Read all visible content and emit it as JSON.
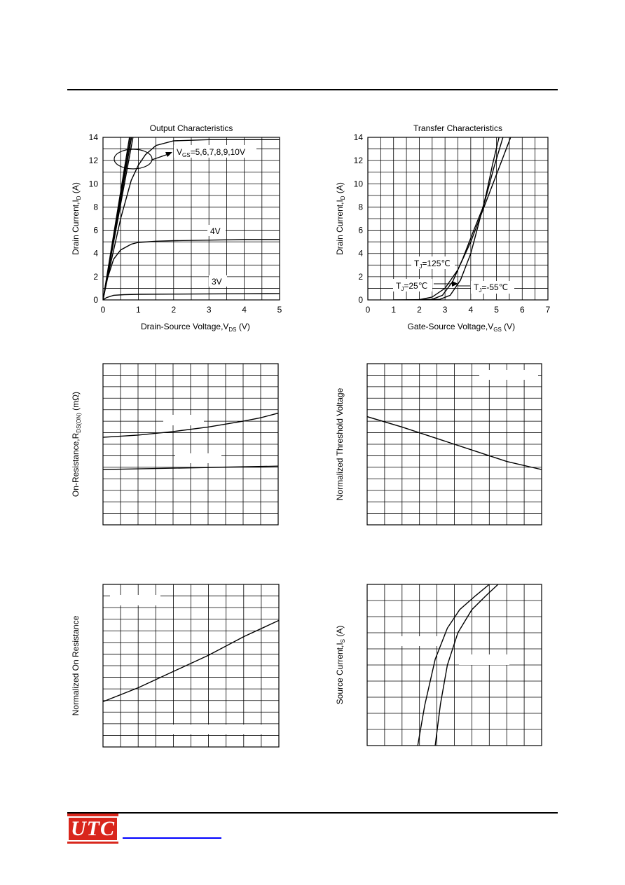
{
  "brand": {
    "logo_text": "UTC",
    "logo_color": "#d9261c",
    "link_color": "#0000ff"
  },
  "chart_data": [
    {
      "type": "line",
      "title": "Output Characteristics",
      "xlabel": "Drain-Source Voltage,V",
      "xlabel_sub": "DS",
      "xlabel_unit": " (V)",
      "ylabel": "Drain Current,I",
      "ylabel_sub": "D",
      "ylabel_unit": " (A)",
      "xlim": [
        0,
        5
      ],
      "ylim": [
        0,
        14
      ],
      "xticks": [
        "0",
        "1",
        "2",
        "3",
        "4",
        "5"
      ],
      "yticks": [
        "0",
        "2",
        "4",
        "6",
        "8",
        "10",
        "12",
        "14"
      ],
      "grid": true,
      "annotations": {
        "vgs_prefix": "V",
        "vgs_sub": "GS",
        "vgs_values": "=5,6,7,8,9,10V",
        "label_4v": "4V",
        "label_3v": "3V"
      },
      "series": [
        {
          "x": [
            0,
            0.75
          ],
          "y": [
            0,
            14
          ]
        },
        {
          "x": [
            0,
            0.78
          ],
          "y": [
            0,
            14
          ]
        },
        {
          "x": [
            0,
            0.81
          ],
          "y": [
            0,
            14
          ]
        },
        {
          "x": [
            0,
            0.85
          ],
          "y": [
            0,
            14
          ]
        },
        {
          "x": [
            0,
            0.2,
            0.5,
            0.8,
            1.0,
            1.2,
            1.5,
            2.0,
            3.0,
            4.0,
            5.0
          ],
          "y": [
            0,
            2.9,
            7.0,
            10.3,
            11.6,
            12.5,
            13.3,
            13.7,
            13.8,
            13.8,
            13.8
          ]
        },
        {
          "x": [
            0,
            0.1,
            0.3,
            0.5,
            0.8,
            1.0,
            1.5,
            2.0,
            3.0,
            4.0,
            5.0
          ],
          "y": [
            0,
            1.6,
            3.5,
            4.3,
            4.8,
            4.95,
            5.05,
            5.1,
            5.15,
            5.2,
            5.2
          ]
        },
        {
          "x": [
            0,
            0.1,
            0.3,
            0.6,
            1.0,
            2.0,
            3.0,
            4.0,
            5.0
          ],
          "y": [
            0,
            0.2,
            0.4,
            0.45,
            0.48,
            0.5,
            0.52,
            0.53,
            0.55
          ]
        }
      ]
    },
    {
      "type": "line",
      "title": "Transfer Characteristics",
      "xlabel": "Gate-Source Voltage,V",
      "xlabel_sub": "GS",
      "xlabel_unit": " (V)",
      "ylabel": "Drain Current,I",
      "ylabel_sub": "D",
      "ylabel_unit": " (A)",
      "xlim": [
        0,
        7
      ],
      "ylim": [
        0,
        14
      ],
      "xticks": [
        "0",
        "1",
        "2",
        "3",
        "4",
        "5",
        "6",
        "7"
      ],
      "yticks": [
        "0",
        "2",
        "4",
        "6",
        "8",
        "10",
        "12",
        "14"
      ],
      "grid": true,
      "annotations": {
        "t125": "T",
        "t125_sub": "J",
        "t125_val": "=125℃",
        "t25": "T",
        "t25_sub": "J",
        "t25_val": "=25℃",
        "tm55": "T",
        "tm55_sub": "J",
        "tm55_val": "=-55℃"
      },
      "series": [
        {
          "x": [
            1.0,
            2.0,
            2.5,
            3.0,
            3.5,
            4.0,
            4.5,
            5.0,
            5.55
          ],
          "y": [
            0,
            0.02,
            0.25,
            1.0,
            2.6,
            5.0,
            7.9,
            10.8,
            14
          ]
        },
        {
          "x": [
            1.5,
            2.5,
            2.9,
            3.3,
            3.7,
            4.1,
            4.5,
            4.9,
            5.25
          ],
          "y": [
            0,
            0.05,
            0.4,
            1.6,
            3.6,
            5.9,
            8.1,
            11.4,
            14
          ]
        },
        {
          "x": [
            2.0,
            2.8,
            3.2,
            3.6,
            4.0,
            4.3,
            4.6,
            4.85,
            5.1
          ],
          "y": [
            0,
            0.05,
            0.4,
            1.7,
            4.0,
            6.5,
            9.1,
            11.7,
            14
          ]
        }
      ]
    },
    {
      "type": "line",
      "title": "",
      "xlabel": "",
      "ylabel": "On-Resistance,R",
      "ylabel_sub": "DS(ON)",
      "ylabel_unit": " (mΩ)",
      "xlim": [
        0,
        10
      ],
      "ylim": [
        0,
        14
      ],
      "grid": true,
      "series": [
        {
          "x": [
            0,
            2,
            4,
            6,
            8,
            9,
            10
          ],
          "y": [
            7.6,
            7.8,
            8.1,
            8.5,
            9.0,
            9.3,
            9.7
          ]
        },
        {
          "x": [
            0,
            10
          ],
          "y": [
            4.8,
            5.1
          ]
        }
      ]
    },
    {
      "type": "line",
      "title": "",
      "xlabel": "",
      "ylabel": "Normalized Threshold Voltage",
      "xlim": [
        0,
        10
      ],
      "ylim": [
        0,
        14
      ],
      "grid": true,
      "series": [
        {
          "x": [
            0,
            2,
            4,
            6,
            8,
            10
          ],
          "y": [
            9.4,
            8.5,
            7.5,
            6.5,
            5.5,
            4.8
          ]
        }
      ]
    },
    {
      "type": "line",
      "title": "",
      "xlabel": "",
      "ylabel": "Normalized On Resistance",
      "xlim": [
        0,
        10
      ],
      "ylim": [
        0,
        14
      ],
      "grid": true,
      "series": [
        {
          "x": [
            0,
            2,
            4,
            6,
            8,
            10
          ],
          "y": [
            3.9,
            5.1,
            6.5,
            7.9,
            9.5,
            10.9
          ]
        }
      ]
    },
    {
      "type": "line",
      "title": "",
      "xlabel": "",
      "ylabel": "Source Current,I",
      "ylabel_sub": "S",
      "ylabel_unit": " (A)",
      "xlim": [
        0,
        10
      ],
      "ylim": [
        0,
        14
      ],
      "grid": true,
      "series": [
        {
          "x": [
            2.9,
            3.3,
            3.9,
            4.6,
            5.3,
            6.2,
            7.0
          ],
          "y": [
            0,
            3.5,
            7.5,
            10.2,
            11.8,
            13.0,
            14
          ]
        },
        {
          "x": [
            3.9,
            4.2,
            4.6,
            5.2,
            6.0,
            6.8,
            7.5
          ],
          "y": [
            0,
            3.6,
            7.0,
            9.8,
            11.8,
            13.0,
            14
          ]
        }
      ]
    }
  ]
}
